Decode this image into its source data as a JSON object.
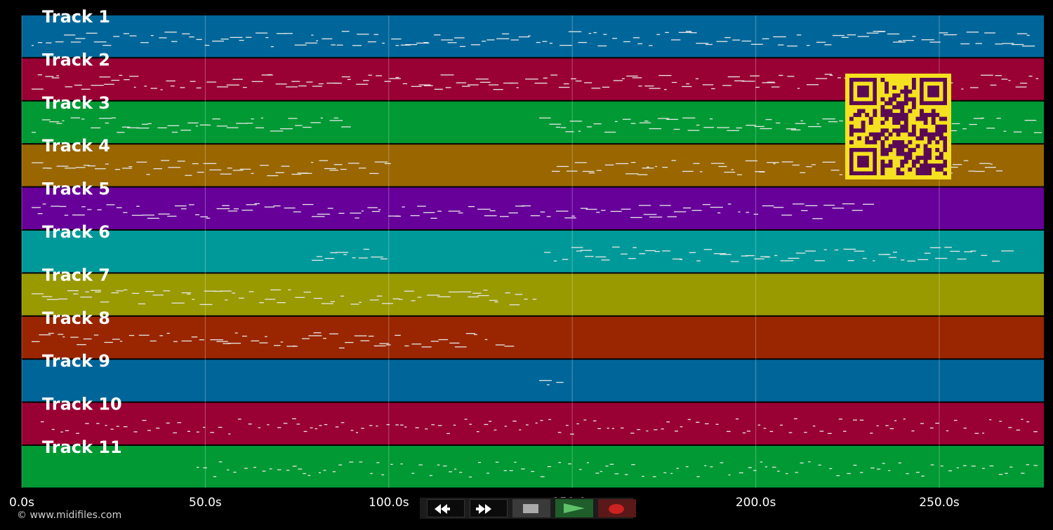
{
  "tracks": [
    {
      "label": "Track 1",
      "color": "#006699"
    },
    {
      "label": "Track 2",
      "color": "#990033"
    },
    {
      "label": "Track 3",
      "color": "#009933"
    },
    {
      "label": "Track 4",
      "color": "#996600"
    },
    {
      "label": "Track 5",
      "color": "#660099"
    },
    {
      "label": "Track 6",
      "color": "#009999"
    },
    {
      "label": "Track 7",
      "color": "#999900"
    },
    {
      "label": "Track 8",
      "color": "#992600"
    },
    {
      "label": "Track 9",
      "color": "#006699"
    },
    {
      "label": "Track 10",
      "color": "#990033"
    },
    {
      "label": "Track 11",
      "color": "#009933"
    }
  ],
  "timeline": {
    "ticks": [
      "0.0s",
      "50.0s",
      "100.0s",
      "150.0s",
      "200.0s",
      "250.0s"
    ],
    "tick_values": [
      0,
      50,
      100,
      150,
      200,
      250
    ],
    "range_seconds": [
      0,
      278.5
    ]
  },
  "transport": {
    "buttons": [
      {
        "name": "rewind-button",
        "icon": "rewind-icon"
      },
      {
        "name": "fast-forward-button",
        "icon": "fast-forward-icon"
      },
      {
        "name": "stop-button",
        "icon": "stop-icon"
      },
      {
        "name": "play-button",
        "icon": "play-icon",
        "color": "#2e8b3a"
      },
      {
        "name": "record-button",
        "icon": "record-icon",
        "color": "#cc2222"
      }
    ]
  },
  "footer": {
    "copyright": "© www.midifiles.com"
  },
  "qr_code": {
    "icon": "qr-code-icon",
    "fg": "#5a0a55",
    "bg": "#f5e11f"
  }
}
